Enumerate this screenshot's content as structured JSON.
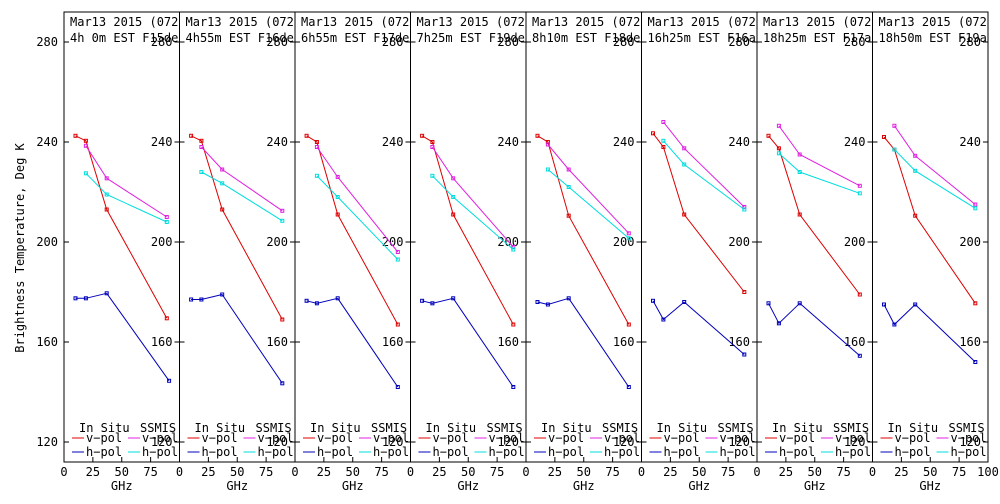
{
  "chart_data": {
    "type": "line",
    "y_label": "Brightness Temperature, Deg K",
    "x_label": "GHz",
    "xlim": [
      0,
      100
    ],
    "ylim": [
      112,
      292
    ],
    "y_ticks": [
      120,
      160,
      200,
      240,
      280
    ],
    "x_ticks": [
      0,
      25,
      50,
      75
    ],
    "x_tick_labels": [
      "0",
      "25",
      "50",
      "75"
    ],
    "x_tick_labels_last": [
      "0",
      "25",
      "50",
      "75",
      "100"
    ],
    "legend": {
      "insitu_heading": "In Situ",
      "ssmis_heading": "SSMIS",
      "v_label": "v−pol",
      "h_label": "h−pol"
    },
    "colors": {
      "insitu_v": "#dd0000",
      "insitu_h": "#0000bb",
      "ssmis_v": "#e020e0",
      "ssmis_h": "#00dddd",
      "axis": "#000000"
    },
    "panels": [
      {
        "title1": "Mar13 2015 (072)",
        "title2": "4h 0m  EST F15des",
        "insitu_v": {
          "x": [
            10,
            19,
            37,
            89
          ],
          "y": [
            242.5,
            240.5,
            213,
            169.5
          ]
        },
        "insitu_h": {
          "x": [
            10,
            19,
            37
          ],
          "y": [
            177.5,
            177.5,
            179.5
          ]
        },
        "insitu_h_tail": {
          "x": [
            37,
            91
          ],
          "y": [
            179.5,
            144.5
          ]
        },
        "ssmis_v": {
          "x": [
            19,
            37,
            89
          ],
          "y": [
            238.5,
            225.5,
            210
          ]
        },
        "ssmis_h": {
          "x": [
            19,
            37,
            89
          ],
          "y": [
            227.5,
            219,
            208
          ]
        }
      },
      {
        "title1": "Mar13 2015 (072)",
        "title2": "4h55m  EST F16des",
        "insitu_v": {
          "x": [
            10,
            19,
            37,
            89
          ],
          "y": [
            242.5,
            240.5,
            213,
            169
          ]
        },
        "insitu_h": {
          "x": [
            10,
            19,
            37
          ],
          "y": [
            177,
            177,
            179
          ]
        },
        "insitu_h_tail": {
          "x": [
            37,
            89
          ],
          "y": [
            179,
            143.5
          ]
        },
        "ssmis_v": {
          "x": [
            19,
            37,
            89
          ],
          "y": [
            238,
            229,
            212.5
          ]
        },
        "ssmis_h": {
          "x": [
            19,
            37,
            89
          ],
          "y": [
            228,
            223.5,
            208.5
          ]
        }
      },
      {
        "title1": "Mar13 2015 (072)",
        "title2": "6h55m  EST F17des",
        "insitu_v": {
          "x": [
            10,
            19,
            37,
            89
          ],
          "y": [
            242.5,
            240,
            211,
            167
          ]
        },
        "insitu_h": {
          "x": [
            10,
            19,
            37
          ],
          "y": [
            176.5,
            175.5,
            177.5
          ]
        },
        "insitu_h_tail": {
          "x": [
            37,
            89
          ],
          "y": [
            177.5,
            142
          ]
        },
        "ssmis_v": {
          "x": [
            19,
            37,
            89
          ],
          "y": [
            238,
            226,
            196
          ]
        },
        "ssmis_h": {
          "x": [
            19,
            37,
            89
          ],
          "y": [
            226.5,
            218,
            193
          ]
        }
      },
      {
        "title1": "Mar13 2015 (072)",
        "title2": "7h25m  EST F19des",
        "insitu_v": {
          "x": [
            10,
            19,
            37,
            89
          ],
          "y": [
            242.5,
            240,
            211,
            167
          ]
        },
        "insitu_h": {
          "x": [
            10,
            19,
            37
          ],
          "y": [
            176.5,
            175.5,
            177.5
          ]
        },
        "insitu_h_tail": {
          "x": [
            37,
            89
          ],
          "y": [
            177.5,
            142
          ]
        },
        "ssmis_v": {
          "x": [
            19,
            37,
            89
          ],
          "y": [
            238,
            225.5,
            198
          ]
        },
        "ssmis_h": {
          "x": [
            19,
            37,
            89
          ],
          "y": [
            226.5,
            218,
            197
          ]
        }
      },
      {
        "title1": "Mar13 2015 (072)",
        "title2": "8h10m  EST F18des",
        "insitu_v": {
          "x": [
            10,
            19,
            37,
            89
          ],
          "y": [
            242.5,
            240,
            210.5,
            167
          ]
        },
        "insitu_h": {
          "x": [
            10,
            19,
            37
          ],
          "y": [
            176,
            175,
            177.5
          ]
        },
        "insitu_h_tail": {
          "x": [
            37,
            89
          ],
          "y": [
            177.5,
            142
          ]
        },
        "ssmis_v": {
          "x": [
            19,
            37,
            89
          ],
          "y": [
            239,
            229,
            203.5
          ]
        },
        "ssmis_h": {
          "x": [
            19,
            37,
            89
          ],
          "y": [
            229,
            222,
            201.5
          ]
        }
      },
      {
        "title1": "Mar13 2015 (072)",
        "title2": "16h25m  EST F16asc",
        "insitu_v": {
          "x": [
            10,
            19,
            37,
            89
          ],
          "y": [
            243.5,
            238,
            211,
            180
          ]
        },
        "insitu_h": {
          "x": [
            10,
            19,
            37
          ],
          "y": [
            176.5,
            169,
            176
          ]
        },
        "insitu_h_tail": {
          "x": [
            37,
            89
          ],
          "y": [
            176,
            155
          ]
        },
        "ssmis_v": {
          "x": [
            19,
            37,
            89
          ],
          "y": [
            248,
            237.5,
            214
          ]
        },
        "ssmis_h": {
          "x": [
            19,
            37,
            89
          ],
          "y": [
            240.5,
            231,
            213
          ]
        }
      },
      {
        "title1": "Mar13 2015 (072)",
        "title2": "18h25m  EST F17asc",
        "insitu_v": {
          "x": [
            10,
            19,
            37,
            89
          ],
          "y": [
            242.5,
            237.5,
            211,
            179
          ]
        },
        "insitu_h": {
          "x": [
            10,
            19,
            37
          ],
          "y": [
            175.5,
            167.5,
            175.5
          ]
        },
        "insitu_h_tail": {
          "x": [
            37,
            89
          ],
          "y": [
            175.5,
            154.5
          ]
        },
        "ssmis_v": {
          "x": [
            19,
            37,
            89
          ],
          "y": [
            246.5,
            235,
            222.5
          ]
        },
        "ssmis_h": {
          "x": [
            19,
            37,
            89
          ],
          "y": [
            235.5,
            228,
            219.5
          ]
        }
      },
      {
        "title1": "Mar13 2015 (072)",
        "title2": "18h50m  EST F19asc",
        "insitu_v": {
          "x": [
            10,
            19,
            37,
            89
          ],
          "y": [
            242,
            237,
            210.5,
            175.5
          ]
        },
        "insitu_h": {
          "x": [
            10,
            19,
            37
          ],
          "y": [
            175,
            167,
            175
          ]
        },
        "insitu_h_tail": {
          "x": [
            37,
            89
          ],
          "y": [
            175,
            152
          ]
        },
        "ssmis_v": {
          "x": [
            19,
            37,
            89
          ],
          "y": [
            246.5,
            234.5,
            215
          ]
        },
        "ssmis_h": {
          "x": [
            19,
            37,
            89
          ],
          "y": [
            237,
            228.5,
            213.5
          ]
        }
      }
    ]
  }
}
